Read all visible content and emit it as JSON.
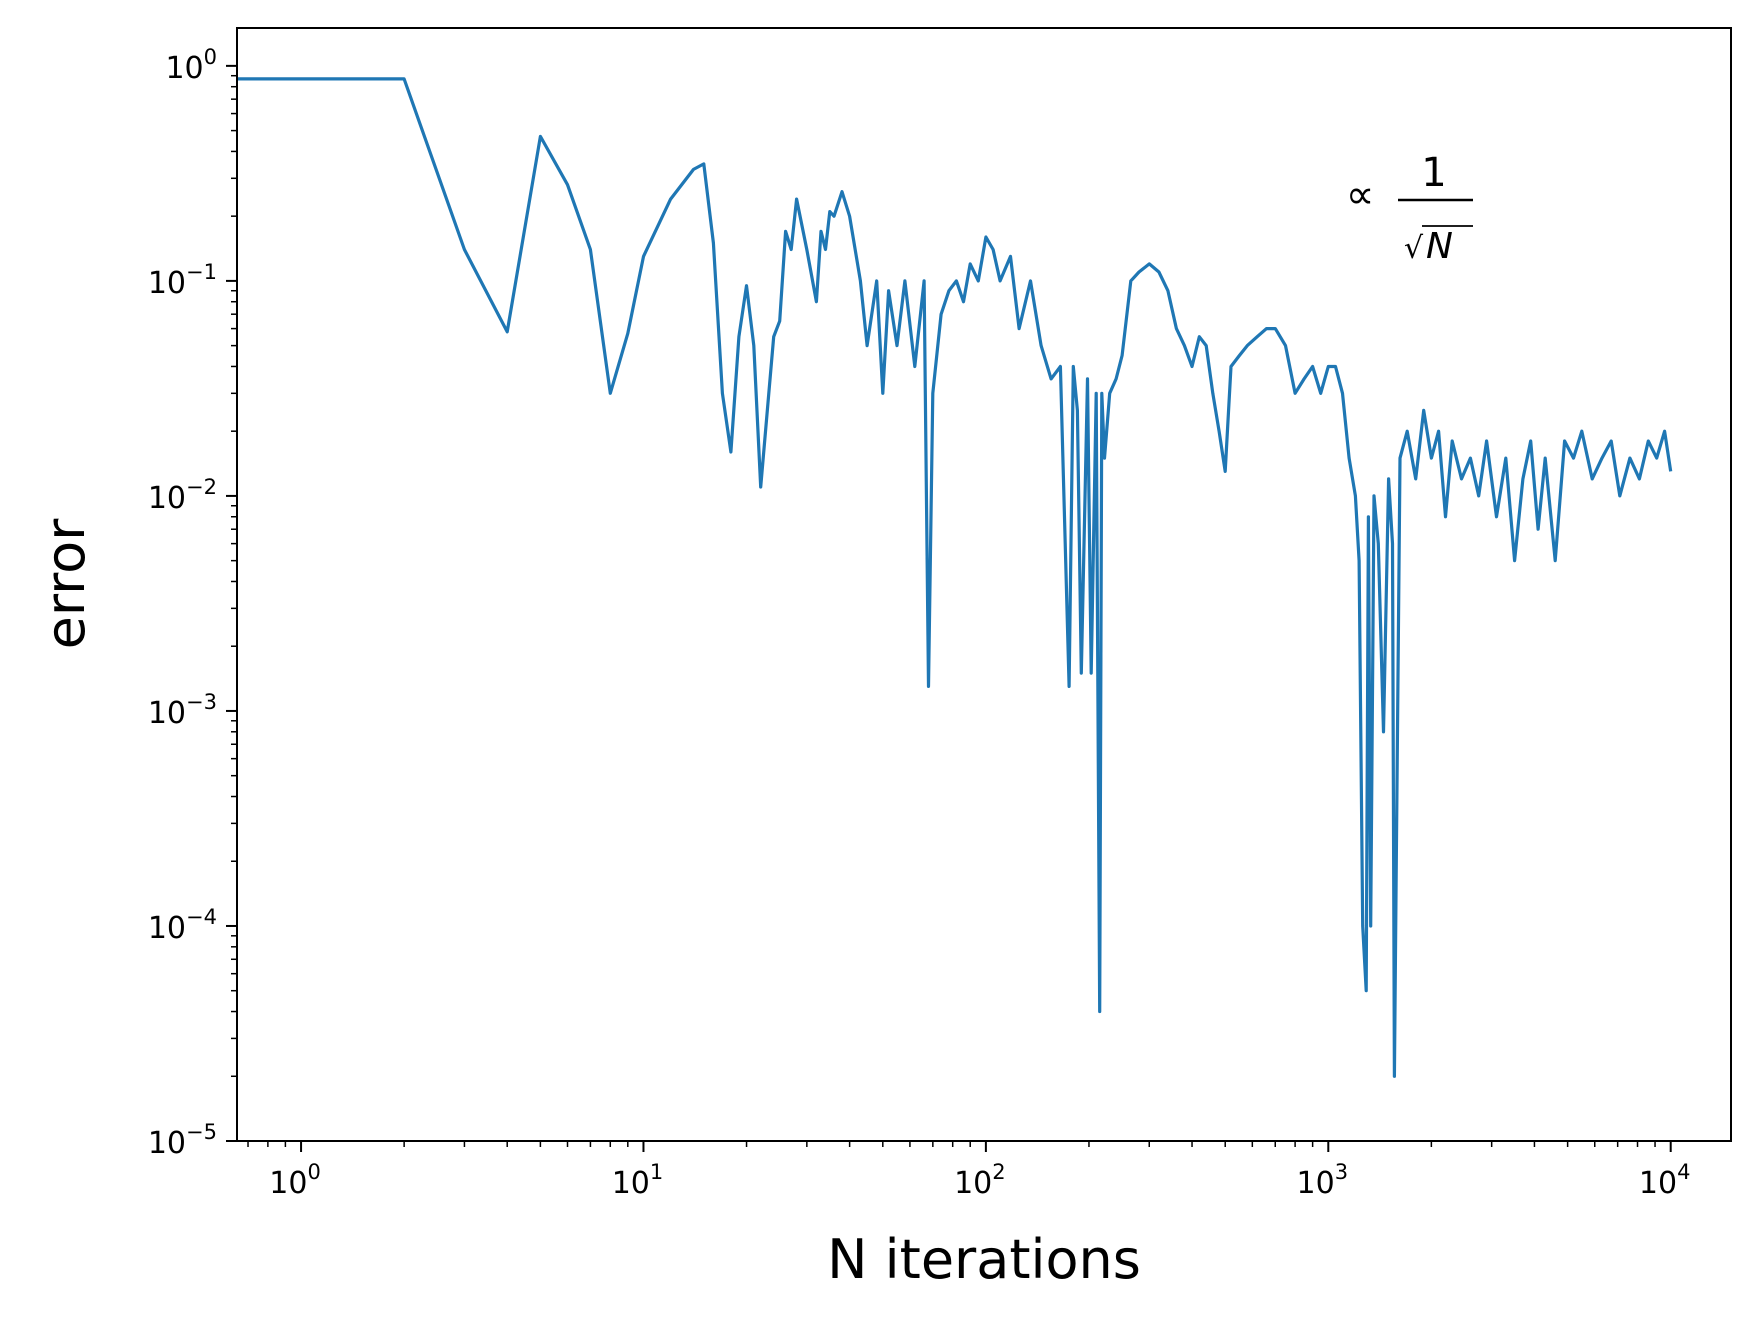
{
  "chart_data": {
    "type": "line",
    "title": "",
    "xlabel": "N iterations",
    "ylabel": "error",
    "xscale": "log",
    "yscale": "log",
    "xlim": [
      0.65,
      15000
    ],
    "ylim": [
      1e-05,
      1.5
    ],
    "grid": false,
    "legend": "none",
    "x_ticks": [
      {
        "base": "10",
        "exp": "0"
      },
      {
        "base": "10",
        "exp": "1"
      },
      {
        "base": "10",
        "exp": "2"
      },
      {
        "base": "10",
        "exp": "3"
      },
      {
        "base": "10",
        "exp": "4"
      }
    ],
    "y_ticks": [
      {
        "base": "10",
        "exp": "0"
      },
      {
        "base": "10",
        "exp": "−1"
      },
      {
        "base": "10",
        "exp": "−2"
      },
      {
        "base": "10",
        "exp": "−3"
      },
      {
        "base": "10",
        "exp": "−4"
      },
      {
        "base": "10",
        "exp": "−5"
      }
    ],
    "annotation": {
      "prefix": "∝",
      "numerator": "1",
      "radical": "√",
      "denominator": "N"
    },
    "series": [
      {
        "color": "#1f77b4",
        "x": [
          0.6,
          1,
          2,
          3,
          4,
          5,
          6,
          7,
          8,
          9,
          10,
          12,
          14,
          15,
          16,
          17,
          18,
          19,
          20,
          21,
          22,
          24,
          25,
          26,
          27,
          28,
          30,
          32,
          33,
          34,
          35,
          36,
          38,
          40,
          43,
          45,
          48,
          50,
          52,
          55,
          58,
          62,
          66,
          68,
          70,
          74,
          78,
          82,
          86,
          90,
          95,
          100,
          105,
          110,
          118,
          125,
          135,
          145,
          155,
          165,
          175,
          180,
          185,
          190,
          198,
          203,
          210,
          215,
          218,
          222,
          230,
          240,
          250,
          265,
          280,
          300,
          320,
          340,
          360,
          380,
          400,
          420,
          440,
          460,
          480,
          500,
          520,
          550,
          580,
          620,
          660,
          700,
          750,
          800,
          850,
          900,
          950,
          1000,
          1050,
          1100,
          1150,
          1200,
          1230,
          1260,
          1290,
          1310,
          1330,
          1360,
          1400,
          1450,
          1500,
          1540,
          1560,
          1580,
          1620,
          1700,
          1800,
          1900,
          2000,
          2100,
          2200,
          2300,
          2450,
          2600,
          2750,
          2900,
          3100,
          3300,
          3500,
          3700,
          3900,
          4100,
          4300,
          4600,
          4900,
          5200,
          5500,
          5900,
          6300,
          6700,
          7100,
          7600,
          8100,
          8600,
          9100,
          9600,
          10000
        ],
        "y": [
          0.87,
          0.87,
          0.87,
          0.14,
          0.058,
          0.47,
          0.28,
          0.14,
          0.03,
          0.057,
          0.13,
          0.24,
          0.33,
          0.35,
          0.15,
          0.03,
          0.016,
          0.055,
          0.095,
          0.05,
          0.011,
          0.055,
          0.065,
          0.17,
          0.14,
          0.24,
          0.14,
          0.08,
          0.17,
          0.14,
          0.21,
          0.2,
          0.26,
          0.2,
          0.1,
          0.05,
          0.1,
          0.03,
          0.09,
          0.05,
          0.1,
          0.04,
          0.1,
          0.0013,
          0.03,
          0.07,
          0.09,
          0.1,
          0.08,
          0.12,
          0.1,
          0.16,
          0.14,
          0.1,
          0.13,
          0.06,
          0.1,
          0.05,
          0.035,
          0.04,
          0.0013,
          0.04,
          0.025,
          0.0015,
          0.035,
          0.0015,
          0.03,
          4e-05,
          0.03,
          0.015,
          0.03,
          0.035,
          0.045,
          0.1,
          0.11,
          0.12,
          0.11,
          0.09,
          0.06,
          0.05,
          0.04,
          0.055,
          0.05,
          0.03,
          0.02,
          0.013,
          0.04,
          0.045,
          0.05,
          0.055,
          0.06,
          0.06,
          0.05,
          0.03,
          0.035,
          0.04,
          0.03,
          0.04,
          0.04,
          0.03,
          0.015,
          0.01,
          0.005,
          0.0001,
          5e-05,
          0.008,
          0.0001,
          0.01,
          0.006,
          0.0008,
          0.012,
          0.006,
          2e-05,
          0.0002,
          0.015,
          0.02,
          0.012,
          0.025,
          0.015,
          0.02,
          0.008,
          0.018,
          0.012,
          0.015,
          0.01,
          0.018,
          0.008,
          0.015,
          0.005,
          0.012,
          0.018,
          0.007,
          0.015,
          0.005,
          0.018,
          0.015,
          0.02,
          0.012,
          0.015,
          0.018,
          0.01,
          0.015,
          0.012,
          0.018,
          0.015,
          0.02,
          0.013
        ]
      }
    ]
  }
}
